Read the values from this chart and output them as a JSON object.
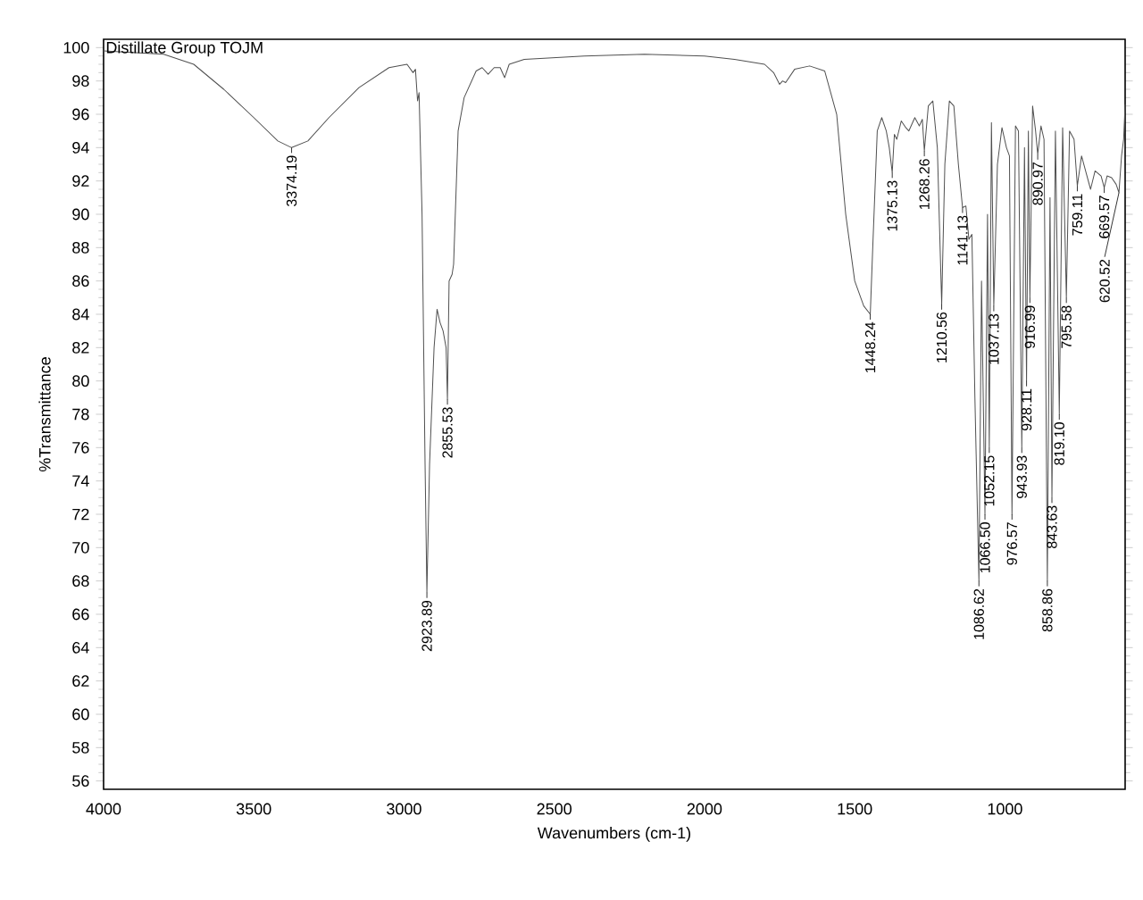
{
  "chart_data": {
    "type": "line",
    "title": "Distillate Group TOJM",
    "xlabel": "Wavenumbers (cm-1)",
    "ylabel": "%Transmittance",
    "xlim": [
      4000,
      600
    ],
    "ylim": [
      55.5,
      100.5
    ],
    "xticks": [
      4000,
      3500,
      3000,
      2500,
      2000,
      1500,
      1000
    ],
    "yticks": [
      56,
      58,
      60,
      62,
      64,
      66,
      68,
      70,
      72,
      74,
      76,
      78,
      80,
      82,
      84,
      86,
      88,
      90,
      92,
      94,
      96,
      98,
      100
    ],
    "color": "#505050",
    "x": [
      4000,
      3800,
      3700,
      3600,
      3500,
      3420,
      3374.19,
      3320,
      3250,
      3150,
      3050,
      2990,
      2970,
      2962,
      2955,
      2950,
      2940,
      2930,
      2923.89,
      2915,
      2900,
      2890,
      2880,
      2870,
      2860,
      2855.53,
      2850,
      2840,
      2835,
      2820,
      2800,
      2760,
      2740,
      2720,
      2700,
      2680,
      2665,
      2650,
      2600,
      2400,
      2200,
      2000,
      1900,
      1800,
      1770,
      1750,
      1740,
      1730,
      1700,
      1650,
      1600,
      1560,
      1530,
      1500,
      1470,
      1448.24,
      1440,
      1425,
      1410,
      1395,
      1385,
      1375.13,
      1368,
      1360,
      1345,
      1330,
      1320,
      1300,
      1285,
      1275,
      1268.26,
      1255,
      1240,
      1225,
      1210.56,
      1200,
      1185,
      1170,
      1155,
      1141.13,
      1130,
      1120,
      1110,
      1100,
      1086.62,
      1078,
      1066.5,
      1058,
      1052.15,
      1045,
      1037.13,
      1025,
      1010,
      995,
      985,
      976.57,
      965,
      955,
      943.93,
      935,
      928.11,
      922,
      916.99,
      908,
      898,
      890.97,
      880,
      870,
      858.86,
      850,
      843.63,
      832,
      819.1,
      808,
      795.58,
      785,
      770,
      759.11,
      745,
      730,
      715,
      700,
      680,
      669.57,
      660,
      645,
      630,
      620.52,
      612,
      605,
      600
    ],
    "values": [
      99.8,
      99.6,
      99.0,
      97.5,
      95.8,
      94.4,
      94.0,
      94.4,
      95.8,
      97.6,
      98.8,
      99.0,
      98.5,
      98.7,
      96.8,
      97.3,
      90,
      75,
      67.3,
      75,
      82,
      84.3,
      83.5,
      83.0,
      82,
      78.9,
      86,
      86.4,
      87,
      95,
      97,
      98.6,
      98.8,
      98.4,
      98.8,
      98.8,
      98.2,
      99.0,
      99.3,
      99.5,
      99.6,
      99.5,
      99.3,
      99.0,
      98.5,
      97.8,
      98.0,
      97.9,
      98.7,
      98.9,
      98.6,
      96,
      90,
      86,
      84.5,
      84.0,
      88,
      95,
      95.8,
      95.0,
      94,
      92.5,
      94.8,
      94.5,
      95.6,
      95.2,
      95.0,
      95.8,
      95.3,
      95.7,
      93.8,
      96.5,
      96.8,
      94,
      84.6,
      93,
      96.8,
      96.5,
      93,
      90.4,
      90.5,
      88.5,
      88.8,
      79,
      68,
      86,
      72,
      90,
      76,
      95.5,
      84.5,
      93,
      95.2,
      94,
      93.5,
      72,
      95.3,
      95,
      76,
      94,
      80,
      95,
      85,
      96.5,
      95,
      93.6,
      95.3,
      94.5,
      68,
      91,
      73,
      95,
      78,
      95.2,
      85,
      95,
      94.5,
      91.7,
      93.5,
      92.5,
      91.5,
      92.6,
      92.3,
      91.6,
      92.3,
      92.2,
      91.8,
      91.3,
      93.5,
      94.5,
      96.6
    ],
    "annotations": [
      {
        "text": "3374.19",
        "x": 3374.19,
        "y": 94.0
      },
      {
        "text": "2923.89",
        "x": 2923.89,
        "y": 67.3
      },
      {
        "text": "2855.53",
        "x": 2855.53,
        "y": 78.9
      },
      {
        "text": "1448.24",
        "x": 1448.24,
        "y": 84.0
      },
      {
        "text": "1375.13",
        "x": 1375.13,
        "y": 92.5
      },
      {
        "text": "1268.26",
        "x": 1268.26,
        "y": 93.8
      },
      {
        "text": "1210.56",
        "x": 1210.56,
        "y": 84.6
      },
      {
        "text": "1141.13",
        "x": 1141.13,
        "y": 90.4
      },
      {
        "text": "1086.62",
        "x": 1086.62,
        "y": 68
      },
      {
        "text": "1066.50",
        "x": 1066.5,
        "y": 72
      },
      {
        "text": "1052.15",
        "x": 1052.15,
        "y": 76
      },
      {
        "text": "1037.13",
        "x": 1037.13,
        "y": 84.5
      },
      {
        "text": "976.57",
        "x": 976.57,
        "y": 72
      },
      {
        "text": "943.93",
        "x": 943.93,
        "y": 76
      },
      {
        "text": "928.11",
        "x": 928.11,
        "y": 80
      },
      {
        "text": "916.99",
        "x": 916.99,
        "y": 85
      },
      {
        "text": "890.97",
        "x": 890.97,
        "y": 93.6
      },
      {
        "text": "858.86",
        "x": 858.86,
        "y": 68
      },
      {
        "text": "843.63",
        "x": 843.63,
        "y": 73
      },
      {
        "text": "819.10",
        "x": 819.1,
        "y": 78
      },
      {
        "text": "795.58",
        "x": 795.58,
        "y": 85
      },
      {
        "text": "759.11",
        "x": 759.11,
        "y": 91.7
      },
      {
        "text": "669.57",
        "x": 669.57,
        "y": 91.6
      },
      {
        "text": "620.52",
        "x": 620.52,
        "y": 91.3
      }
    ]
  }
}
